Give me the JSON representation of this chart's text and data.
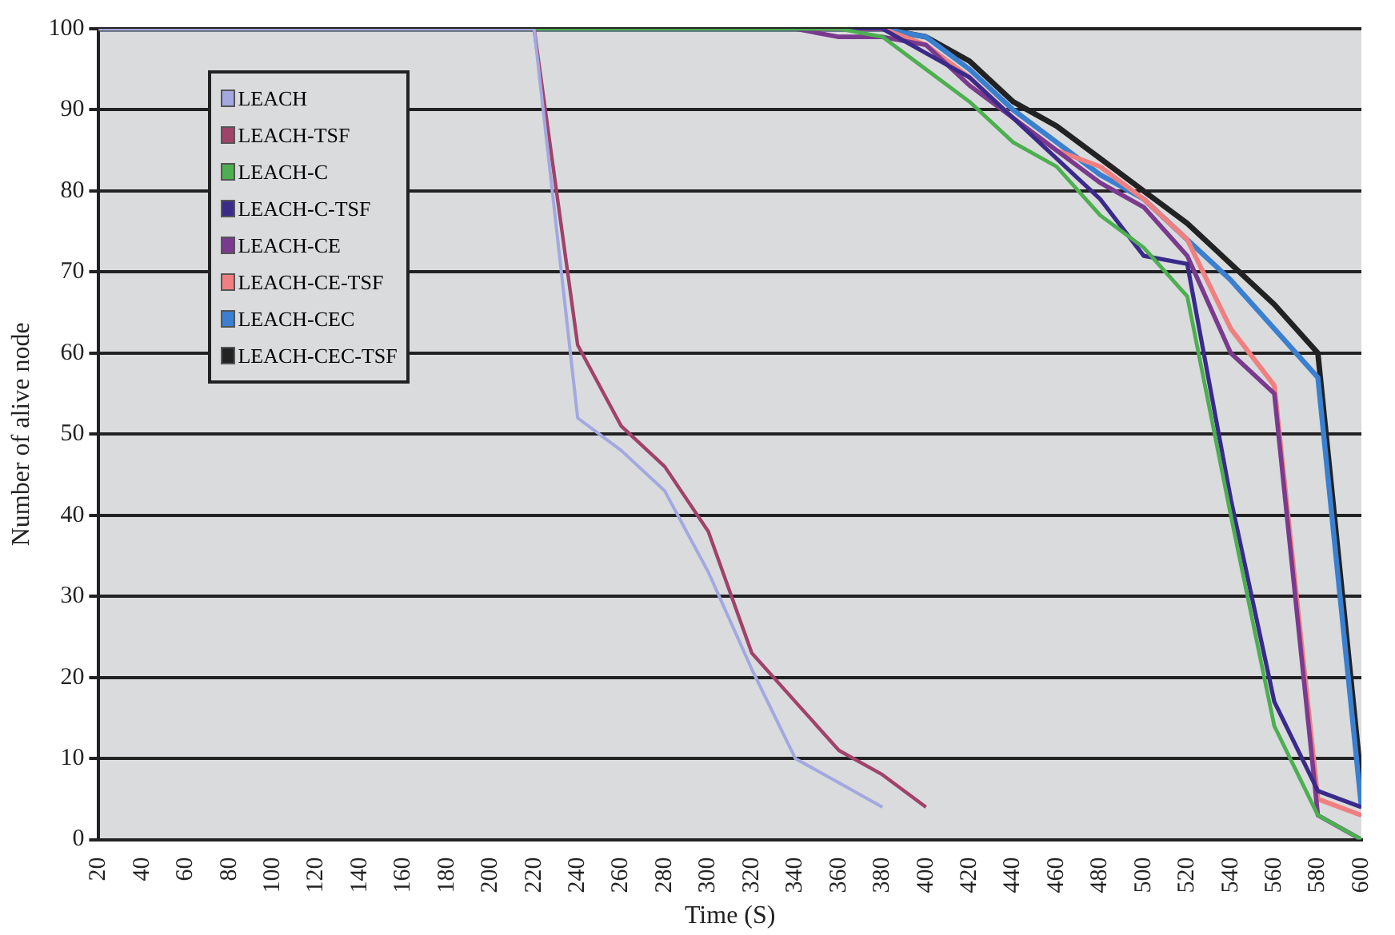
{
  "chart_data": {
    "type": "line",
    "xlabel": "Time (S)",
    "ylabel": "Number of alive node",
    "xlim": [
      20,
      600
    ],
    "xticks": [
      20,
      40,
      60,
      80,
      100,
      120,
      140,
      160,
      180,
      200,
      220,
      240,
      260,
      280,
      300,
      320,
      340,
      360,
      380,
      400,
      420,
      440,
      460,
      480,
      500,
      520,
      540,
      560,
      580,
      600
    ],
    "ylim": [
      0,
      100
    ],
    "yticks": [
      0,
      10,
      20,
      30,
      40,
      50,
      60,
      70,
      80,
      90,
      100
    ],
    "grid": "y",
    "legend": "top left",
    "marker": "none",
    "line_style": "solid",
    "series": [
      {
        "name": "LEACH",
        "color": "#a3a8e0",
        "x": [
          20,
          220,
          240,
          260,
          280,
          300,
          320,
          340,
          360,
          380
        ],
        "values": [
          100,
          100,
          52,
          48,
          43,
          33,
          21,
          10,
          7,
          4
        ]
      },
      {
        "name": "LEACH-TSF",
        "color": "#a0426a",
        "x": [
          20,
          220,
          240,
          260,
          280,
          300,
          320,
          340,
          360,
          380,
          400
        ],
        "values": [
          100,
          100,
          61,
          51,
          46,
          38,
          23,
          17,
          11,
          8,
          4
        ]
      },
      {
        "name": "LEACH-C",
        "color": "#4caf50",
        "x": [
          20,
          360,
          380,
          400,
          420,
          440,
          460,
          480,
          500,
          520,
          540,
          560,
          580,
          600
        ],
        "values": [
          100,
          100,
          99,
          95,
          91,
          86,
          83,
          77,
          73,
          67,
          40,
          14,
          3,
          0
        ]
      },
      {
        "name": "LEACH-C-TSF",
        "color": "#3a2a8a",
        "x": [
          20,
          380,
          400,
          420,
          440,
          460,
          480,
          500,
          520,
          540,
          560,
          580,
          600
        ],
        "values": [
          100,
          100,
          97,
          94,
          89,
          84,
          79,
          72,
          71,
          42,
          17,
          6,
          4
        ]
      },
      {
        "name": "LEACH-CE",
        "color": "#7a3a8e",
        "x": [
          20,
          340,
          360,
          380,
          400,
          420,
          440,
          460,
          480,
          500,
          520,
          540,
          560,
          580,
          600
        ],
        "values": [
          100,
          100,
          99,
          99,
          98,
          93,
          89,
          85,
          81,
          78,
          72,
          60,
          55,
          3,
          0
        ]
      },
      {
        "name": "LEACH-CE-TSF",
        "color": "#f08080",
        "x": [
          20,
          380,
          400,
          420,
          440,
          460,
          480,
          500,
          520,
          540,
          560,
          580,
          600
        ],
        "values": [
          100,
          100,
          98,
          94,
          89,
          85,
          83,
          79,
          74,
          63,
          56,
          5,
          3
        ]
      },
      {
        "name": "LEACH-CEC",
        "color": "#3a7fd0",
        "x": [
          20,
          380,
          400,
          420,
          440,
          460,
          480,
          500,
          520,
          540,
          560,
          580,
          600
        ],
        "values": [
          100,
          100,
          99,
          95,
          90,
          86,
          82,
          79,
          74,
          69,
          63,
          57,
          4
        ]
      },
      {
        "name": "LEACH-CEC-TSF",
        "color": "#222222",
        "x": [
          20,
          380,
          400,
          420,
          440,
          460,
          480,
          500,
          520,
          540,
          560,
          580,
          600
        ],
        "values": [
          100,
          100,
          99,
          96,
          91,
          88,
          84,
          80,
          76,
          71,
          66,
          60,
          7
        ]
      }
    ]
  }
}
